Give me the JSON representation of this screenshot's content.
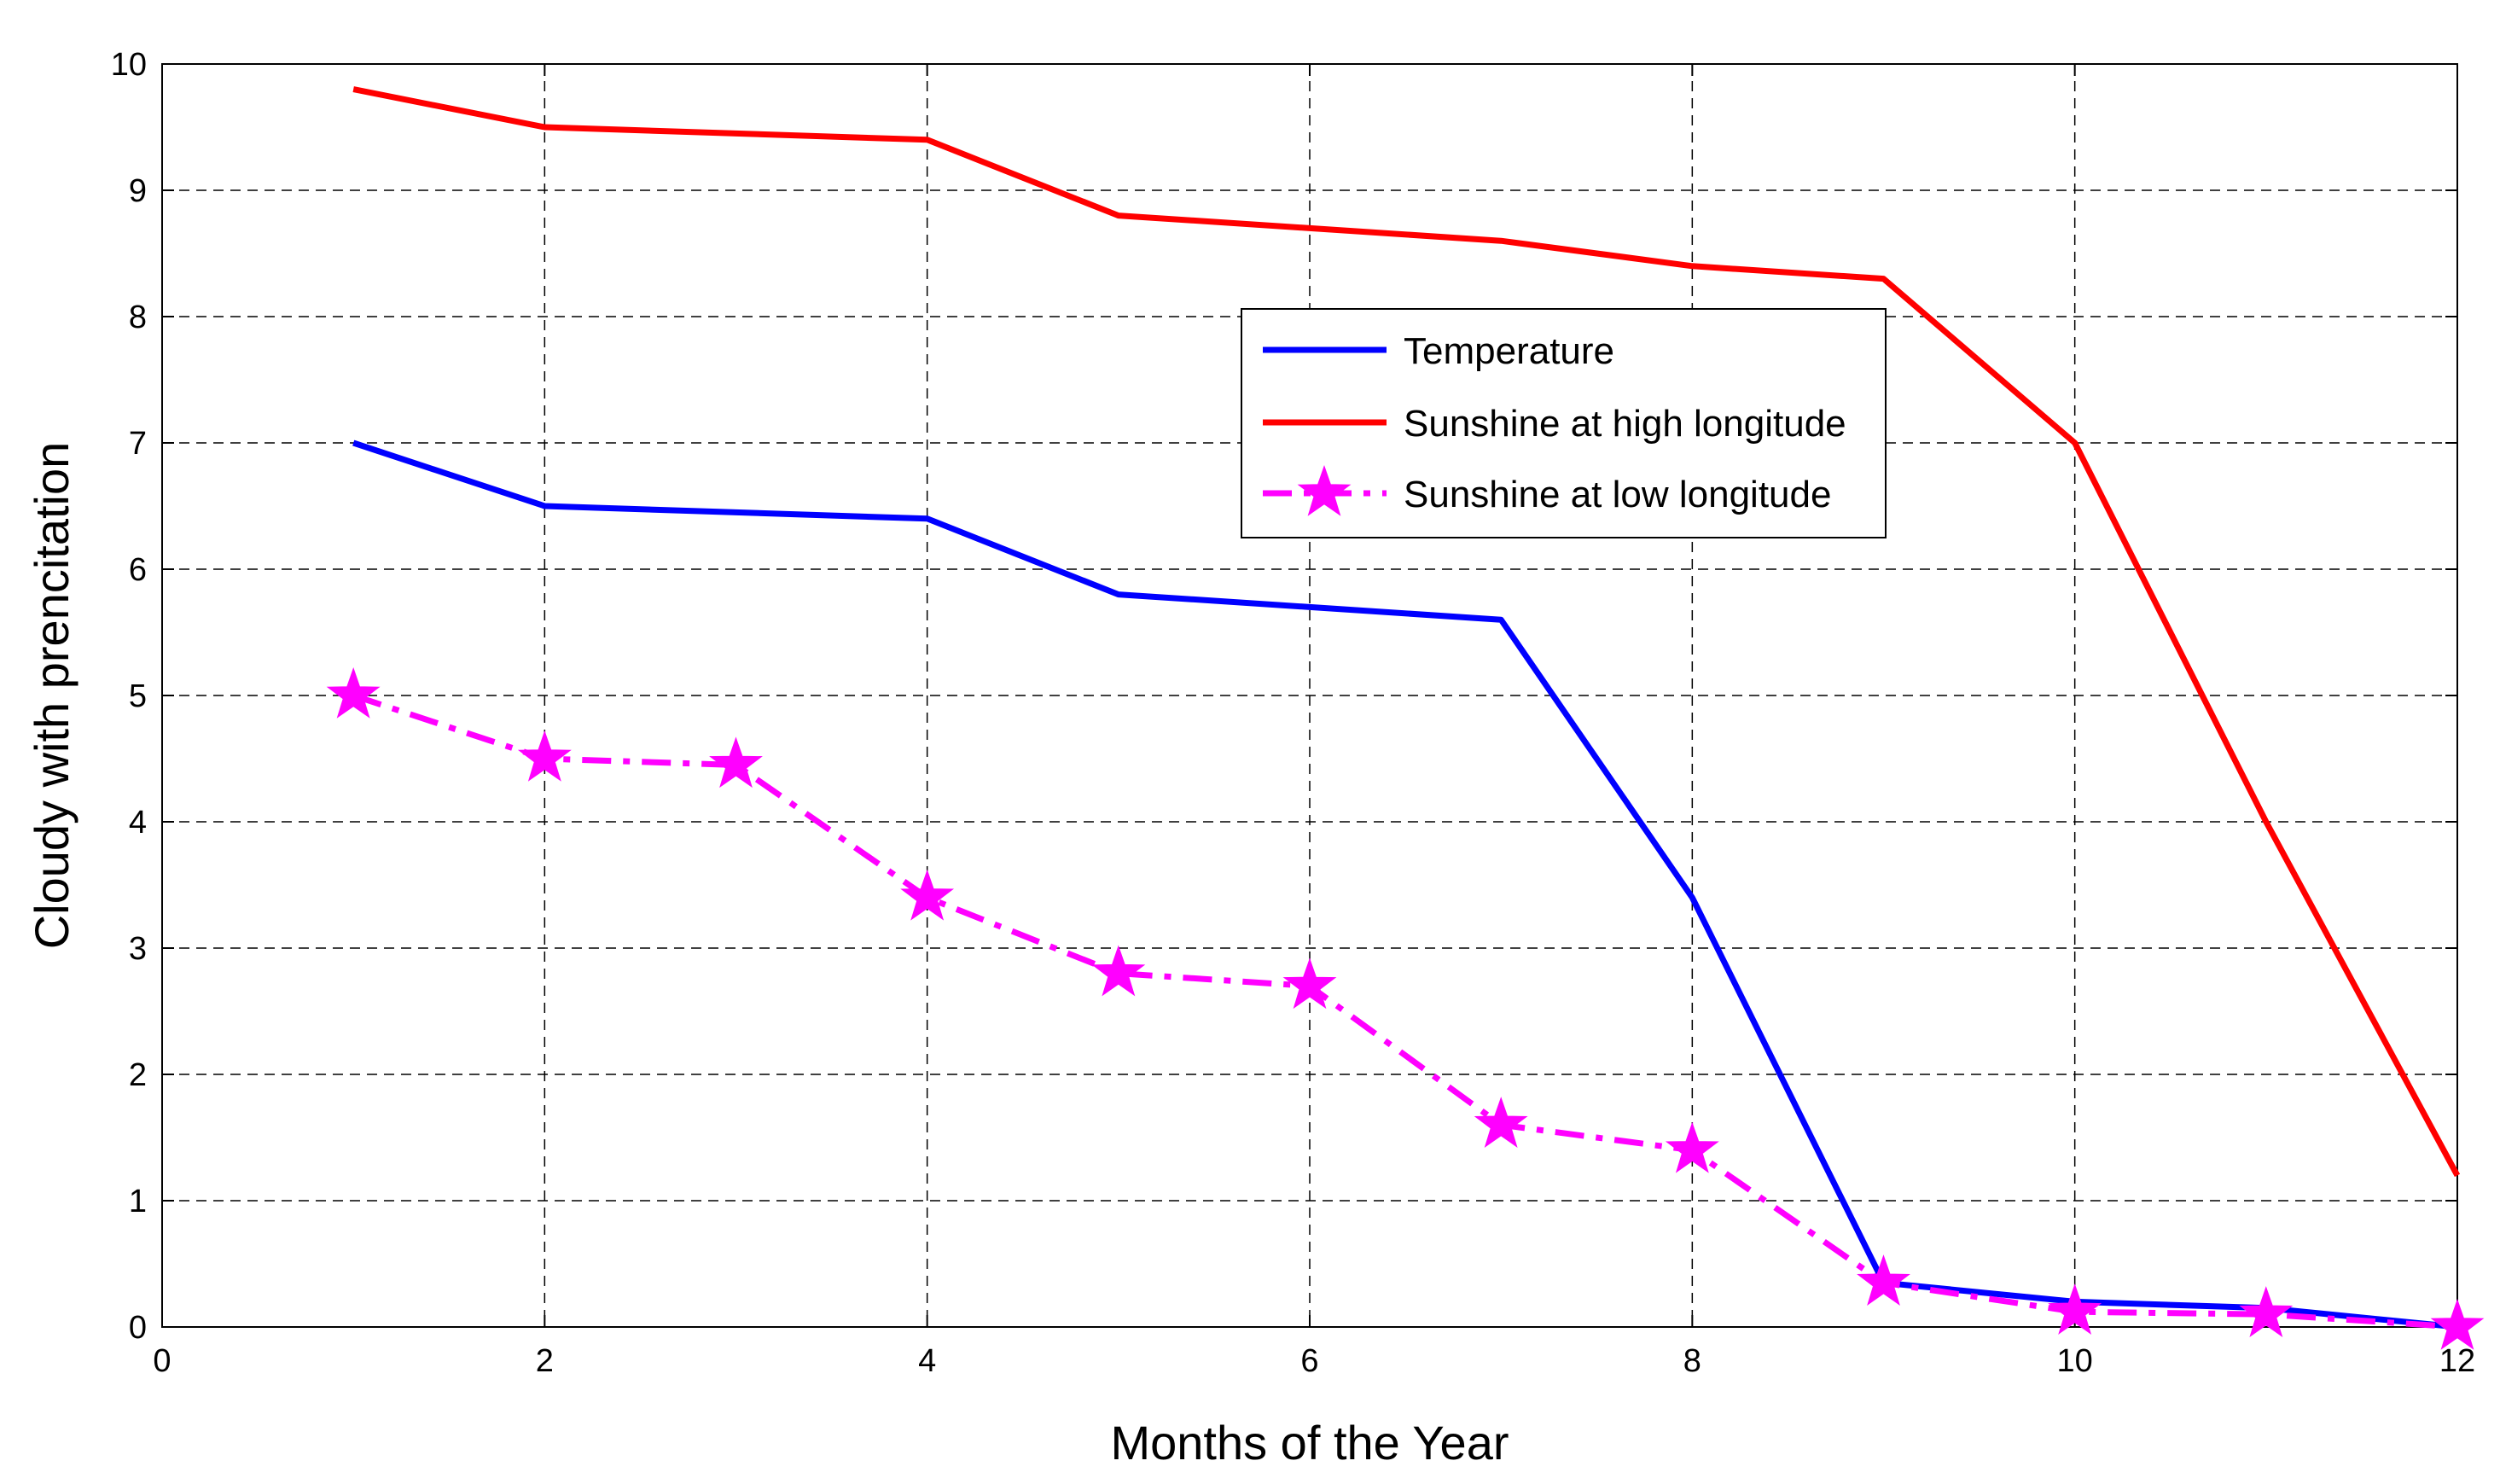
{
  "chart_data": {
    "type": "line",
    "title": "",
    "xlabel": "Months of the Year",
    "ylabel": "Cloudy with prencitation",
    "xlim": [
      0,
      12
    ],
    "ylim": [
      0,
      10
    ],
    "xticks": [
      0,
      2,
      4,
      6,
      8,
      10,
      12
    ],
    "yticks": [
      0,
      1,
      2,
      3,
      4,
      5,
      6,
      7,
      8,
      9,
      10
    ],
    "grid": true,
    "legend_position": "top-center-right",
    "series": [
      {
        "name": "Temperature",
        "color": "#0000ff",
        "style": "solid",
        "marker": "none",
        "x": [
          1,
          2,
          3,
          4,
          5,
          6,
          7,
          8,
          9,
          10,
          11,
          12
        ],
        "y": [
          7.0,
          6.5,
          6.45,
          6.4,
          5.8,
          5.7,
          5.6,
          3.4,
          0.35,
          0.2,
          0.15,
          0.0
        ]
      },
      {
        "name": "Sunshine at high longitude",
        "color": "#ff0000",
        "style": "solid",
        "marker": "none",
        "x": [
          1,
          2,
          3,
          4,
          5,
          6,
          7,
          8,
          9,
          10,
          11,
          12
        ],
        "y": [
          9.8,
          9.5,
          9.45,
          9.4,
          8.8,
          8.7,
          8.6,
          8.4,
          8.3,
          7.0,
          4.0,
          1.2
        ]
      },
      {
        "name": "Sunshine at low longitude",
        "color": "#ff00ff",
        "style": "dashdot",
        "marker": "star",
        "x": [
          1,
          2,
          3,
          4,
          5,
          6,
          7,
          8,
          9,
          10,
          11,
          12
        ],
        "y": [
          5.0,
          4.5,
          4.45,
          3.4,
          2.8,
          2.7,
          1.6,
          1.4,
          0.35,
          0.12,
          0.1,
          0.0
        ]
      }
    ]
  }
}
